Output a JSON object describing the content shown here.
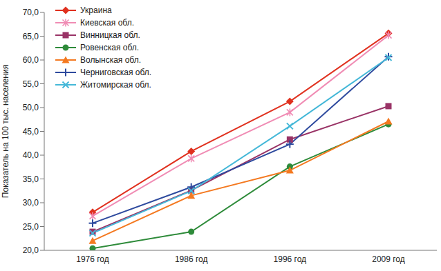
{
  "chart_data": {
    "type": "line",
    "y_label": "Показатель на 100 тыс. населения",
    "categories": [
      "1976 год",
      "1986 год",
      "1996 год",
      "2009 год"
    ],
    "ylim": [
      20,
      70
    ],
    "yticks": [
      {
        "value": 20,
        "label": "20,0"
      },
      {
        "value": 25,
        "label": "25,0"
      },
      {
        "value": 30,
        "label": "30,0"
      },
      {
        "value": 35,
        "label": "35,0"
      },
      {
        "value": 40,
        "label": "40,0"
      },
      {
        "value": 45,
        "label": "45,0"
      },
      {
        "value": 50,
        "label": "50,0"
      },
      {
        "value": 55,
        "label": "55,0"
      },
      {
        "value": 60,
        "label": "60,0"
      },
      {
        "value": 65,
        "label": "65,0"
      },
      {
        "value": 70,
        "label": "70,0"
      }
    ],
    "grid": false,
    "legend": "upper left",
    "series": [
      {
        "name": "Украина",
        "color": "#e0301e",
        "marker": "diamond",
        "values": [
          28.0,
          40.8,
          51.3,
          65.6
        ]
      },
      {
        "name": "Киевская обл.",
        "color": "#f08cb4",
        "marker": "star",
        "values": [
          27.2,
          39.3,
          49.0,
          65.2
        ]
      },
      {
        "name": "Винницкая обл.",
        "color": "#993366",
        "marker": "square",
        "values": [
          23.9,
          32.6,
          43.3,
          50.3
        ]
      },
      {
        "name": "Ровенская обл.",
        "color": "#2e8b3a",
        "marker": "circle",
        "values": [
          20.4,
          23.9,
          37.6,
          46.5
        ]
      },
      {
        "name": "Волынская обл.",
        "color": "#f47920",
        "marker": "triangle",
        "values": [
          22.0,
          31.5,
          36.8,
          47.1
        ]
      },
      {
        "name": "Черниговская обл.",
        "color": "#2e4a9e",
        "marker": "plus",
        "values": [
          25.7,
          33.3,
          42.3,
          60.7
        ]
      },
      {
        "name": "Житомирская обл.",
        "color": "#45b8d8",
        "marker": "x",
        "values": [
          23.6,
          32.5,
          46.1,
          60.5
        ]
      }
    ]
  }
}
